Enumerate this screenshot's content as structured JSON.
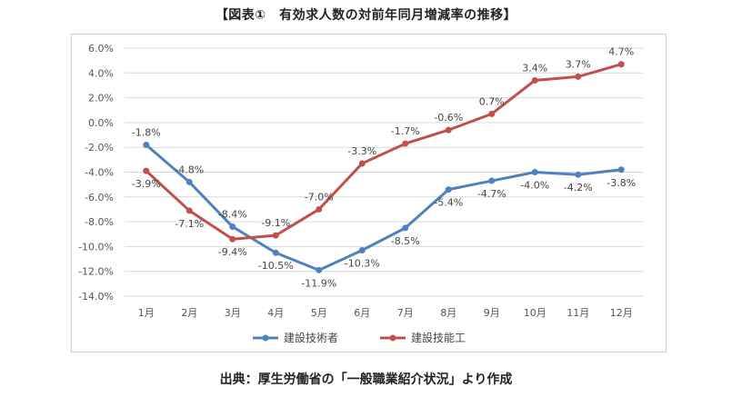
{
  "title": "【図表①　有効求人数の対前年同月増減率の推移】",
  "source": "出典：厚生労働省の「一般職業紹介状況」より作成",
  "chart_data": {
    "type": "line",
    "title": "【図表①　有効求人数の対前年同月増減率の推移】",
    "categories": [
      "1月",
      "2月",
      "3月",
      "4月",
      "5月",
      "6月",
      "7月",
      "8月",
      "9月",
      "10月",
      "11月",
      "12月"
    ],
    "y_ticks": [
      "6.0%",
      "4.0%",
      "2.0%",
      "0.0%",
      "-2.0%",
      "-4.0%",
      "-6.0%",
      "-8.0%",
      "-10.0%",
      "-12.0%",
      "-14.0%"
    ],
    "ylim": [
      -14,
      6
    ],
    "y_step": 2,
    "grid": true,
    "legend_position": "bottom",
    "series": [
      {
        "name": "建設技術者",
        "color": "#4f81bd",
        "values": [
          -1.8,
          -4.8,
          -8.4,
          -10.5,
          -11.9,
          -10.3,
          -8.5,
          -5.4,
          -4.7,
          -4.0,
          -4.2,
          -3.8
        ],
        "labels": [
          "-1.8%",
          "-4.8%",
          "-8.4%",
          "-10.5%",
          "-11.9%",
          "-10.3%",
          "-8.5%",
          "-5.4%",
          "-4.7%",
          "-4.0%",
          "-4.2%",
          "-3.8%"
        ],
        "label_side": [
          "above",
          "above",
          "above",
          "below",
          "below",
          "below",
          "below",
          "below",
          "below",
          "below",
          "below",
          "below"
        ]
      },
      {
        "name": "建設技能工",
        "color": "#c0504d",
        "values": [
          -3.9,
          -7.1,
          -9.4,
          -9.1,
          -7.0,
          -3.3,
          -1.7,
          -0.6,
          0.7,
          3.4,
          3.7,
          4.7
        ],
        "labels": [
          "-3.9%",
          "-7.1%",
          "-9.4%",
          "-9.1%",
          "-7.0%",
          "-3.3%",
          "-1.7%",
          "-0.6%",
          "0.7%",
          "3.4%",
          "3.7%",
          "4.7%"
        ],
        "label_side": [
          "below",
          "below",
          "below",
          "above",
          "above",
          "above",
          "above",
          "above",
          "above",
          "above",
          "above",
          "above"
        ]
      }
    ]
  }
}
